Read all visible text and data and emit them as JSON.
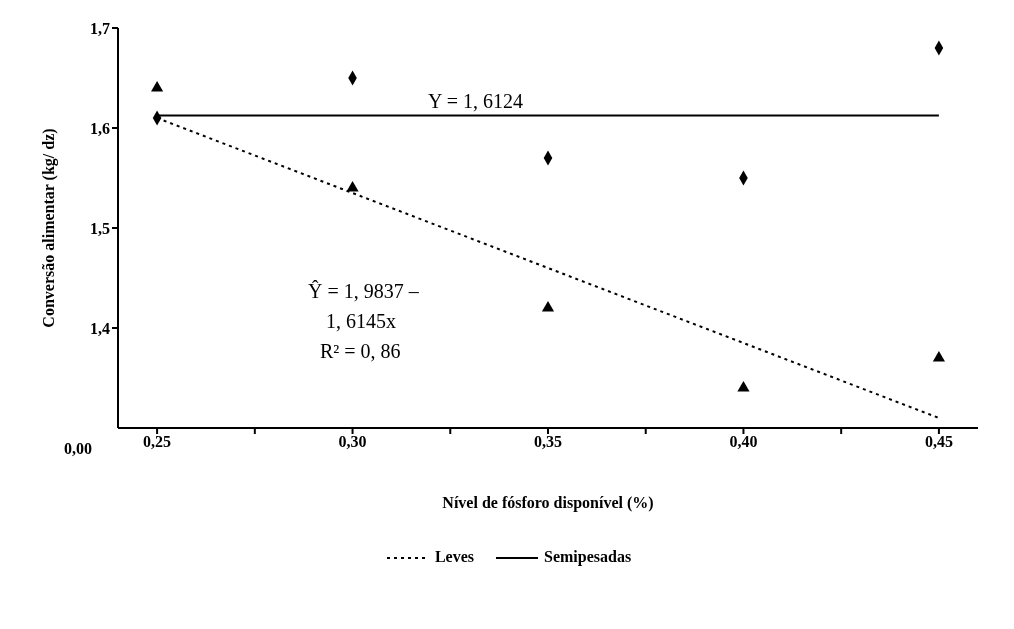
{
  "chart_data": {
    "type": "scatter",
    "xlabel": "Nível de fósforo disponível (%)",
    "ylabel": "Conversão alimentar (kg/ dz)",
    "xlim": [
      0.24,
      0.46
    ],
    "ylim": [
      1.3,
      1.7
    ],
    "xticks": [
      {
        "value": 0.25,
        "label": "0,25"
      },
      {
        "value": 0.275,
        "label": null
      },
      {
        "value": 0.3,
        "label": "0,30"
      },
      {
        "value": 0.325,
        "label": null
      },
      {
        "value": 0.35,
        "label": "0,35"
      },
      {
        "value": 0.375,
        "label": null
      },
      {
        "value": 0.4,
        "label": "0,40"
      },
      {
        "value": 0.425,
        "label": null
      },
      {
        "value": 0.45,
        "label": "0,45"
      }
    ],
    "yticks": [
      {
        "value": 1.4,
        "label": "1,4"
      },
      {
        "value": 1.5,
        "label": "1,5"
      },
      {
        "value": 1.6,
        "label": "1,6"
      },
      {
        "value": 1.7,
        "label": "1,7"
      }
    ],
    "grid": false,
    "legend": "bottom",
    "series": [
      {
        "color": "#000000",
        "marker": "triangle",
        "x": [
          0.25,
          0.3,
          0.35,
          0.4,
          0.45
        ],
        "values": [
          1.64,
          1.54,
          1.42,
          1.34,
          1.37
        ]
      },
      {
        "color": "#000000",
        "marker": "diamond",
        "x": [
          0.25,
          0.3,
          0.35,
          0.4,
          0.45
        ],
        "values": [
          1.61,
          1.65,
          1.57,
          1.55,
          1.68
        ]
      },
      {
        "type": "line",
        "name": "Leves",
        "color": "#000000",
        "line_style": "dotted",
        "marker": "none",
        "x": [
          0.25,
          0.45
        ],
        "values": [
          1.61,
          1.31
        ]
      },
      {
        "type": "line",
        "name": "Semipesadas",
        "color": "#000000",
        "line_style": "solid",
        "marker": "none",
        "x": [
          0.25,
          0.45
        ],
        "values": [
          1.6124,
          1.6124
        ]
      }
    ],
    "annotations": [
      "0,00",
      "Y = 1, 6124",
      "Ŷ = 1, 9837 –",
      "1, 6145x",
      "R² = 0, 86"
    ]
  }
}
